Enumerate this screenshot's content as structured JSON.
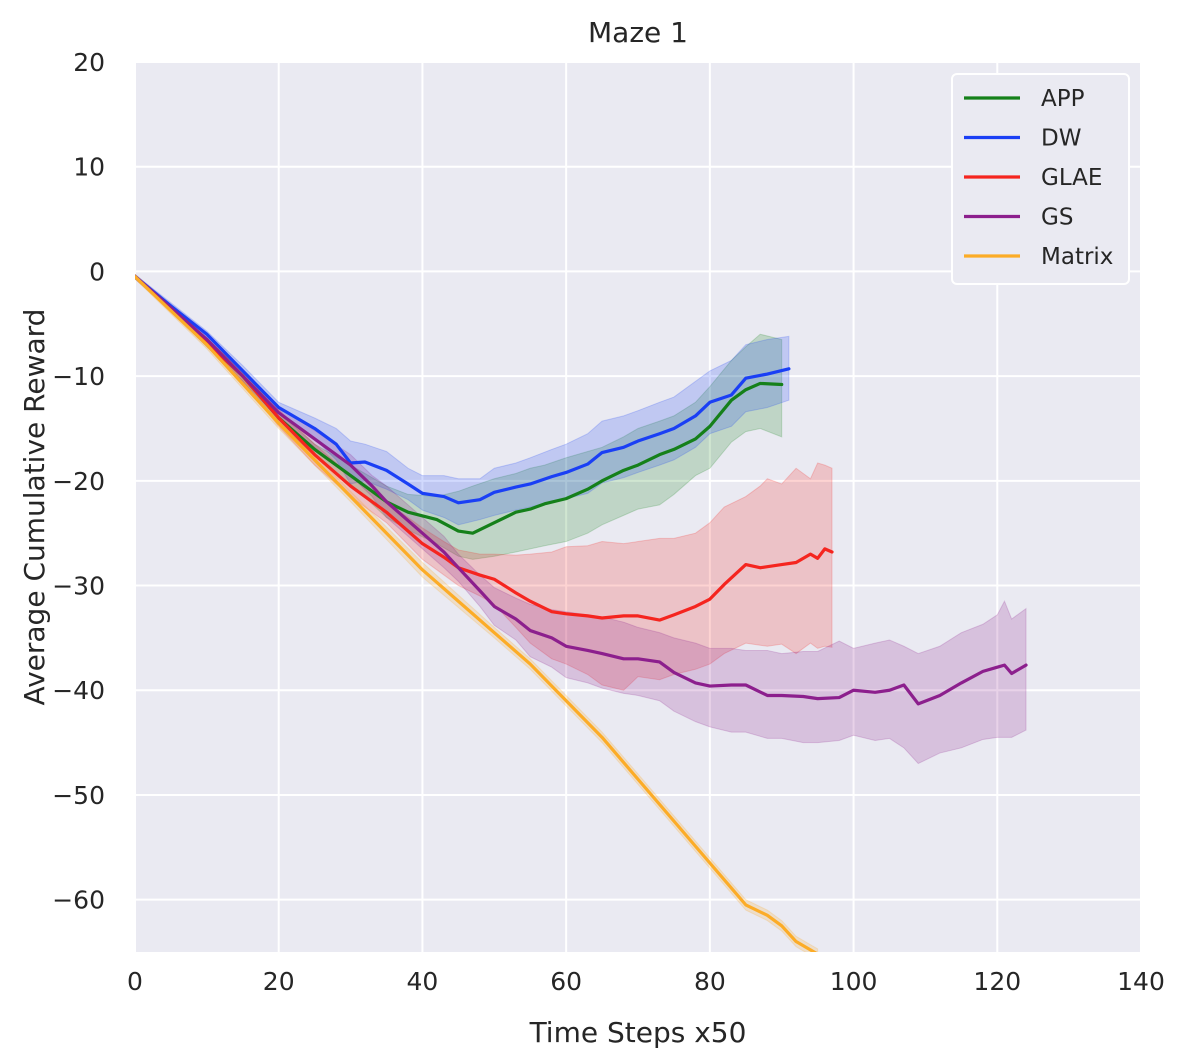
{
  "chart_data": {
    "type": "line",
    "title": "Maze 1",
    "xlabel": "Time Steps x50",
    "ylabel": "Average Cumulative Reward",
    "xlim": [
      0,
      140
    ],
    "ylim": [
      -65,
      20
    ],
    "xticks": [
      0,
      20,
      40,
      60,
      80,
      100,
      120,
      140
    ],
    "yticks": [
      20,
      10,
      0,
      -10,
      -20,
      -30,
      -40,
      -50,
      -60
    ],
    "xtick_labels": [
      "0",
      "20",
      "40",
      "60",
      "80",
      "100",
      "120",
      "140"
    ],
    "ytick_labels": [
      "20",
      "10",
      "0",
      "−10",
      "−20",
      "−30",
      "−40",
      "−50",
      "−60"
    ],
    "grid": true,
    "legend_position": "top-right",
    "series": [
      {
        "name": "APP",
        "color": "#15801a",
        "x": [
          0,
          5,
          10,
          15,
          20,
          25,
          30,
          35,
          38,
          42,
          45,
          47,
          50,
          53,
          55,
          57,
          60,
          63,
          65,
          68,
          70,
          73,
          75,
          78,
          80,
          83,
          85,
          87,
          90
        ],
        "y": [
          -0.5,
          -3.5,
          -6.8,
          -10,
          -14,
          -17,
          -19.5,
          -22,
          -23,
          -23.7,
          -24.8,
          -25,
          -24,
          -23,
          -22.7,
          -22.2,
          -21.7,
          -20.8,
          -20,
          -19,
          -18.5,
          -17.5,
          -17,
          -16,
          -14.8,
          -12.3,
          -11.3,
          -10.7,
          -10.8
        ],
        "band_upper": [
          -0.3,
          -3.3,
          -6.5,
          -9.5,
          -13.5,
          -16.5,
          -18.5,
          -20.5,
          -21.3,
          -21.5,
          -21,
          -20.5,
          -19.8,
          -19.3,
          -18.8,
          -18.5,
          -17.8,
          -17.2,
          -16.8,
          -15.8,
          -15,
          -14.3,
          -13.8,
          -12.5,
          -11,
          -8.5,
          -7.2,
          -6,
          -6.5
        ],
        "band_lower": [
          -0.7,
          -3.8,
          -7.2,
          -10.5,
          -14.5,
          -17.6,
          -20.3,
          -23.5,
          -24.7,
          -26,
          -27.2,
          -27.5,
          -27.2,
          -26.8,
          -26.5,
          -26.2,
          -25.8,
          -25,
          -24.2,
          -23.3,
          -22.7,
          -22.3,
          -21.3,
          -19.5,
          -18.8,
          -16.3,
          -15.3,
          -15,
          -15.8
        ]
      },
      {
        "name": "DW",
        "color": "#1a3ff5",
        "x": [
          0,
          5,
          10,
          15,
          20,
          25,
          28,
          30,
          32,
          35,
          38,
          40,
          43,
          45,
          48,
          50,
          53,
          55,
          58,
          60,
          63,
          65,
          68,
          70,
          73,
          75,
          78,
          80,
          83,
          85,
          88,
          91
        ],
        "y": [
          -0.5,
          -3.3,
          -6,
          -9.5,
          -13,
          -15,
          -16.5,
          -18.3,
          -18.2,
          -19,
          -20.3,
          -21.2,
          -21.5,
          -22.1,
          -21.8,
          -21.1,
          -20.6,
          -20.3,
          -19.6,
          -19.2,
          -18.4,
          -17.3,
          -16.8,
          -16.2,
          -15.5,
          -15,
          -13.8,
          -12.5,
          -11.8,
          -10.2,
          -9.8,
          -9.3
        ],
        "band_upper": [
          -0.3,
          -3,
          -5.7,
          -9,
          -12.5,
          -14,
          -15,
          -16.2,
          -16.5,
          -17.2,
          -18.8,
          -19.5,
          -19.5,
          -19.8,
          -19.8,
          -18.8,
          -18.3,
          -17.8,
          -17,
          -16.5,
          -15.5,
          -14.3,
          -13.8,
          -13.3,
          -12.5,
          -12,
          -10.5,
          -9.5,
          -8.5,
          -7,
          -6.5,
          -6.2
        ],
        "band_lower": [
          -0.7,
          -3.6,
          -6.3,
          -10,
          -13.5,
          -16,
          -18,
          -20.3,
          -20,
          -20.8,
          -21.8,
          -22.8,
          -23.5,
          -24.2,
          -23.7,
          -23.3,
          -22.8,
          -22.5,
          -22,
          -21.7,
          -21.2,
          -20.2,
          -19.7,
          -19.2,
          -18.5,
          -18,
          -16.8,
          -15.5,
          -14.8,
          -13.4,
          -13,
          -12.3
        ]
      },
      {
        "name": "GLAE",
        "color": "#f5251f",
        "x": [
          0,
          5,
          10,
          15,
          20,
          25,
          30,
          35,
          40,
          43,
          45,
          48,
          50,
          53,
          55,
          58,
          60,
          63,
          65,
          68,
          70,
          73,
          75,
          78,
          80,
          82,
          85,
          87,
          88,
          90,
          92,
          94,
          95,
          96,
          97
        ],
        "y": [
          -0.5,
          -3.5,
          -6.8,
          -10,
          -14,
          -17.5,
          -20.5,
          -23,
          -26,
          -27.3,
          -28.3,
          -29,
          -29.4,
          -30.7,
          -31.5,
          -32.5,
          -32.7,
          -32.9,
          -33.1,
          -32.9,
          -32.9,
          -33.3,
          -32.8,
          -32,
          -31.3,
          -29.9,
          -28,
          -28.3,
          -28.2,
          -28,
          -27.8,
          -27,
          -27.4,
          -26.5,
          -26.8
        ],
        "band_upper": [
          -0.3,
          -3.2,
          -6.4,
          -9.5,
          -13.2,
          -16.5,
          -19.5,
          -22,
          -24.5,
          -25.8,
          -26.6,
          -27,
          -27,
          -27.1,
          -27,
          -26.8,
          -26.3,
          -26.2,
          -25.8,
          -26,
          -25.8,
          -25.5,
          -25.5,
          -25,
          -24,
          -22.5,
          -21.5,
          -20.5,
          -19.8,
          -20.3,
          -18.8,
          -19.8,
          -18.3,
          -18.5,
          -18.8
        ],
        "band_lower": [
          -0.7,
          -3.8,
          -7.2,
          -10.5,
          -14.8,
          -18.5,
          -21.5,
          -24,
          -27.5,
          -29,
          -30,
          -31,
          -31.8,
          -34,
          -35.5,
          -37,
          -37.5,
          -38.5,
          -39.5,
          -40,
          -38.7,
          -39,
          -38.5,
          -38,
          -37.5,
          -36.5,
          -35.5,
          -35.7,
          -35.8,
          -35.6,
          -36.5,
          -35.5,
          -36,
          -35.8,
          -35.9
        ]
      },
      {
        "name": "GS",
        "color": "#8c1f8d",
        "x": [
          0,
          5,
          10,
          15,
          20,
          25,
          30,
          33,
          35,
          40,
          43,
          45,
          48,
          50,
          53,
          55,
          58,
          60,
          63,
          65,
          68,
          70,
          73,
          75,
          78,
          80,
          83,
          85,
          88,
          90,
          93,
          95,
          98,
          100,
          103,
          105,
          107,
          109,
          112,
          115,
          118,
          120,
          121,
          122,
          124
        ],
        "y": [
          -0.5,
          -3.5,
          -6.5,
          -10,
          -13.5,
          -16,
          -18.5,
          -20.5,
          -22,
          -25,
          -26.8,
          -28.3,
          -30.5,
          -32,
          -33.2,
          -34.3,
          -35,
          -35.8,
          -36.2,
          -36.5,
          -37,
          -37,
          -37.3,
          -38.3,
          -39.3,
          -39.6,
          -39.5,
          -39.5,
          -40.5,
          -40.5,
          -40.6,
          -40.8,
          -40.7,
          -40,
          -40.2,
          -40,
          -39.5,
          -41.3,
          -40.5,
          -39.3,
          -38.2,
          -37.8,
          -37.6,
          -38.4,
          -37.6
        ],
        "band_upper": [
          -0.3,
          -3.2,
          -6.1,
          -9.5,
          -12.9,
          -15.2,
          -17.5,
          -19.5,
          -20.5,
          -23.5,
          -25.3,
          -27,
          -29,
          -30.2,
          -31.2,
          -31.8,
          -32.3,
          -32.5,
          -32.8,
          -33,
          -33.5,
          -34,
          -34.5,
          -35,
          -35.5,
          -36,
          -36,
          -36.2,
          -36.2,
          -36.5,
          -36.3,
          -36.3,
          -35.3,
          -36,
          -35.5,
          -35.2,
          -35.8,
          -36.5,
          -35.8,
          -34.5,
          -33.7,
          -32.8,
          -31.5,
          -33.2,
          -32.2
        ],
        "band_lower": [
          -0.7,
          -3.8,
          -6.9,
          -10.5,
          -14.1,
          -16.8,
          -19.5,
          -21.5,
          -23.5,
          -26.5,
          -28.3,
          -29.6,
          -32,
          -33.8,
          -35.2,
          -36.8,
          -37.8,
          -38.8,
          -39.3,
          -39.8,
          -40.3,
          -40.5,
          -41,
          -42,
          -43,
          -43.5,
          -44,
          -44,
          -44.6,
          -44.6,
          -45,
          -45,
          -44.8,
          -44.3,
          -44.8,
          -44.6,
          -45.5,
          -47,
          -46,
          -45.5,
          -44.7,
          -44.5,
          -44.5,
          -44.5,
          -43.8
        ]
      },
      {
        "name": "Matrix",
        "color": "#fcac27",
        "x": [
          0,
          10,
          20,
          30,
          40,
          45,
          50,
          55,
          60,
          65,
          70,
          75,
          80,
          85,
          88,
          90,
          92,
          95
        ],
        "y": [
          -0.5,
          -7,
          -14.5,
          -21.5,
          -28.5,
          -31.5,
          -34.5,
          -37.5,
          -41,
          -44.5,
          -48.5,
          -52.5,
          -56.5,
          -60.5,
          -61.5,
          -62.5,
          -64,
          -65.2
        ],
        "band_upper": [
          -0.3,
          -6.6,
          -14,
          -21,
          -27.8,
          -30.9,
          -34,
          -37,
          -40.5,
          -44,
          -48,
          -52,
          -56,
          -60,
          -61,
          -62,
          -63.5,
          -64.7
        ],
        "band_lower": [
          -0.7,
          -7.4,
          -15,
          -22,
          -29.2,
          -32.1,
          -35,
          -38,
          -41.5,
          -45,
          -49,
          -53,
          -57,
          -61,
          -62,
          -63,
          -64.5,
          -65.7
        ]
      }
    ]
  }
}
